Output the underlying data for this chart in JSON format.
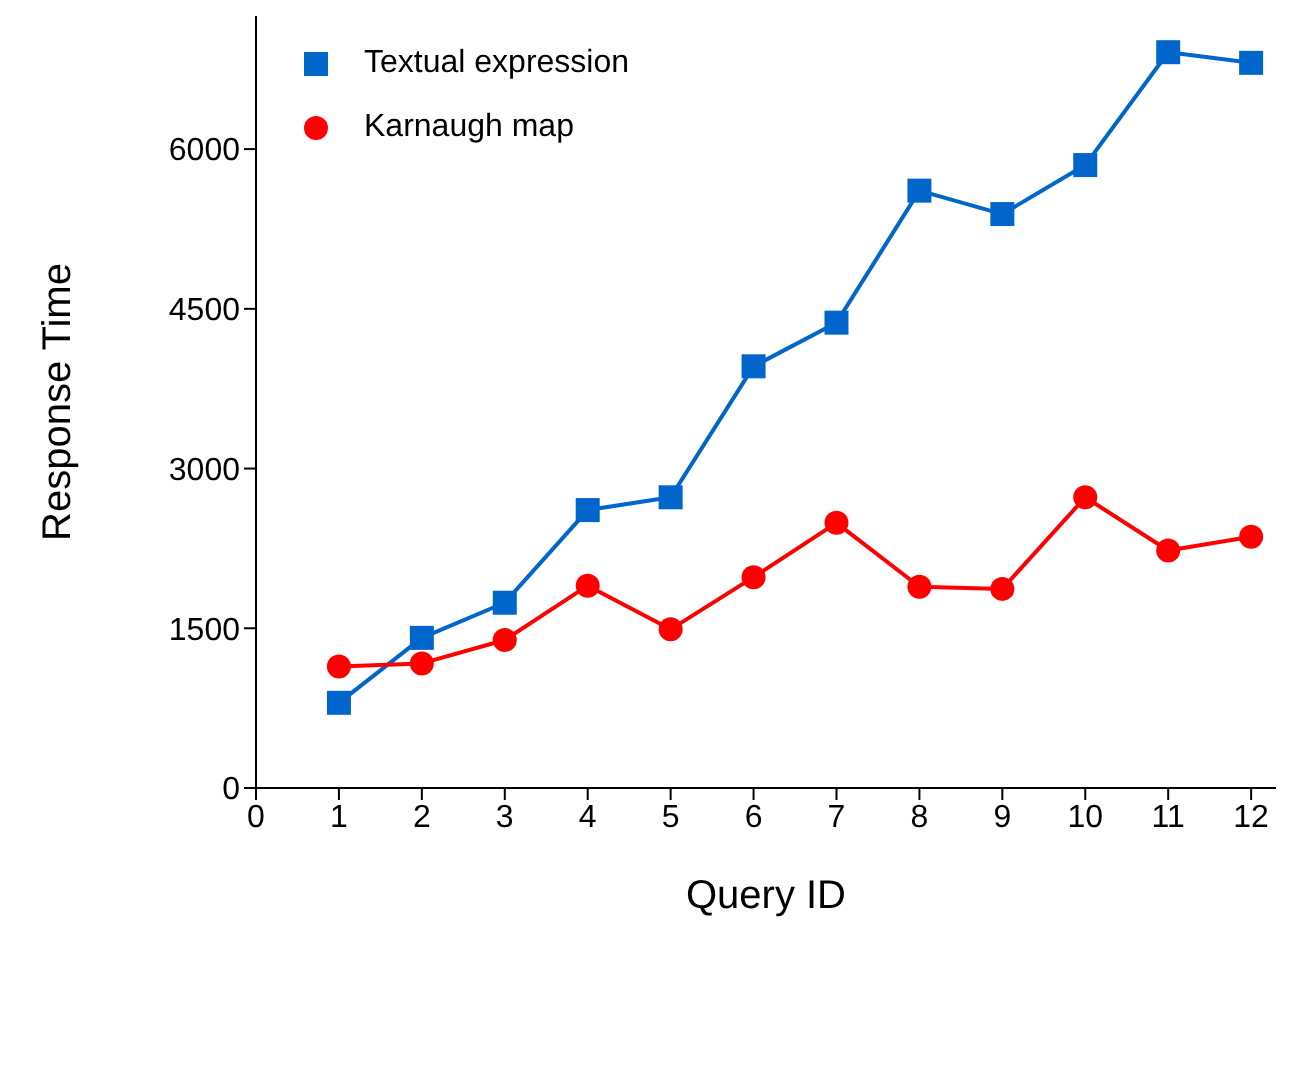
{
  "chart_data": {
    "type": "line",
    "xlabel": "Query ID",
    "ylabel": "Response Time",
    "x": [
      1,
      2,
      3,
      4,
      5,
      6,
      7,
      8,
      9,
      10,
      11,
      12
    ],
    "series": [
      {
        "name": "Textual expression",
        "color": "#0066cc",
        "marker": "square",
        "values": [
          800,
          1410,
          1740,
          2610,
          2730,
          3960,
          4370,
          5610,
          5390,
          5850,
          6910,
          6810
        ]
      },
      {
        "name": "Karnaugh map",
        "color": "#ff0000",
        "marker": "circle",
        "values": [
          1140,
          1170,
          1390,
          1900,
          1490,
          1980,
          2490,
          1890,
          1870,
          2730,
          2230,
          2360
        ]
      }
    ],
    "xlim": [
      0,
      12.3
    ],
    "xticks": [
      0,
      1,
      2,
      3,
      4,
      5,
      6,
      7,
      8,
      9,
      10,
      11,
      12
    ],
    "ylim": [
      0,
      7250
    ],
    "yticks": [
      0,
      1500,
      3000,
      4500,
      6000
    ],
    "grid": false,
    "legend": "top left",
    "line_style": "solid"
  }
}
